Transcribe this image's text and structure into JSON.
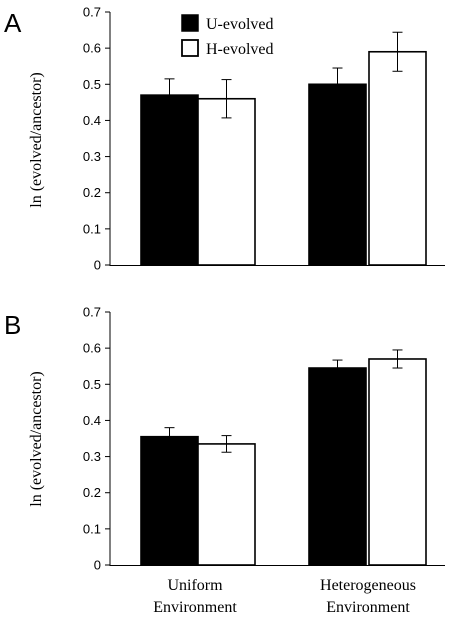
{
  "colors": {
    "u_evolved": "#000000",
    "h_evolved": "#ffffff",
    "axis": "#000000"
  },
  "legend": {
    "u_label": "U-evolved",
    "h_label": "H-evolved"
  },
  "categories": [
    {
      "line1": "Uniform",
      "line2": "Environment"
    },
    {
      "line1": "Heterogeneous",
      "line2": "Environment"
    }
  ],
  "chart_data": [
    {
      "type": "bar",
      "panel": "A",
      "ylabel": "ln (evolved/ancestor)",
      "ylim": [
        0,
        0.7
      ],
      "yticks": [
        0,
        0.1,
        0.2,
        0.3,
        0.4,
        0.5,
        0.6,
        0.7
      ],
      "categories": [
        "Uniform Environment",
        "Heterogeneous Environment"
      ],
      "series": [
        {
          "name": "U-evolved",
          "values": [
            0.47,
            0.5
          ],
          "errors": [
            0.045,
            0.045
          ]
        },
        {
          "name": "H-evolved",
          "values": [
            0.46,
            0.59
          ],
          "errors": [
            0.053,
            0.054
          ]
        }
      ]
    },
    {
      "type": "bar",
      "panel": "B",
      "ylabel": "ln (evolved/ancestor)",
      "ylim": [
        0,
        0.7
      ],
      "yticks": [
        0,
        0.1,
        0.2,
        0.3,
        0.4,
        0.5,
        0.6,
        0.7
      ],
      "categories": [
        "Uniform Environment",
        "Heterogeneous Environment"
      ],
      "series": [
        {
          "name": "U-evolved",
          "values": [
            0.355,
            0.545
          ],
          "errors": [
            0.025,
            0.022
          ]
        },
        {
          "name": "H-evolved",
          "values": [
            0.335,
            0.57
          ],
          "errors": [
            0.023,
            0.025
          ]
        }
      ]
    }
  ]
}
